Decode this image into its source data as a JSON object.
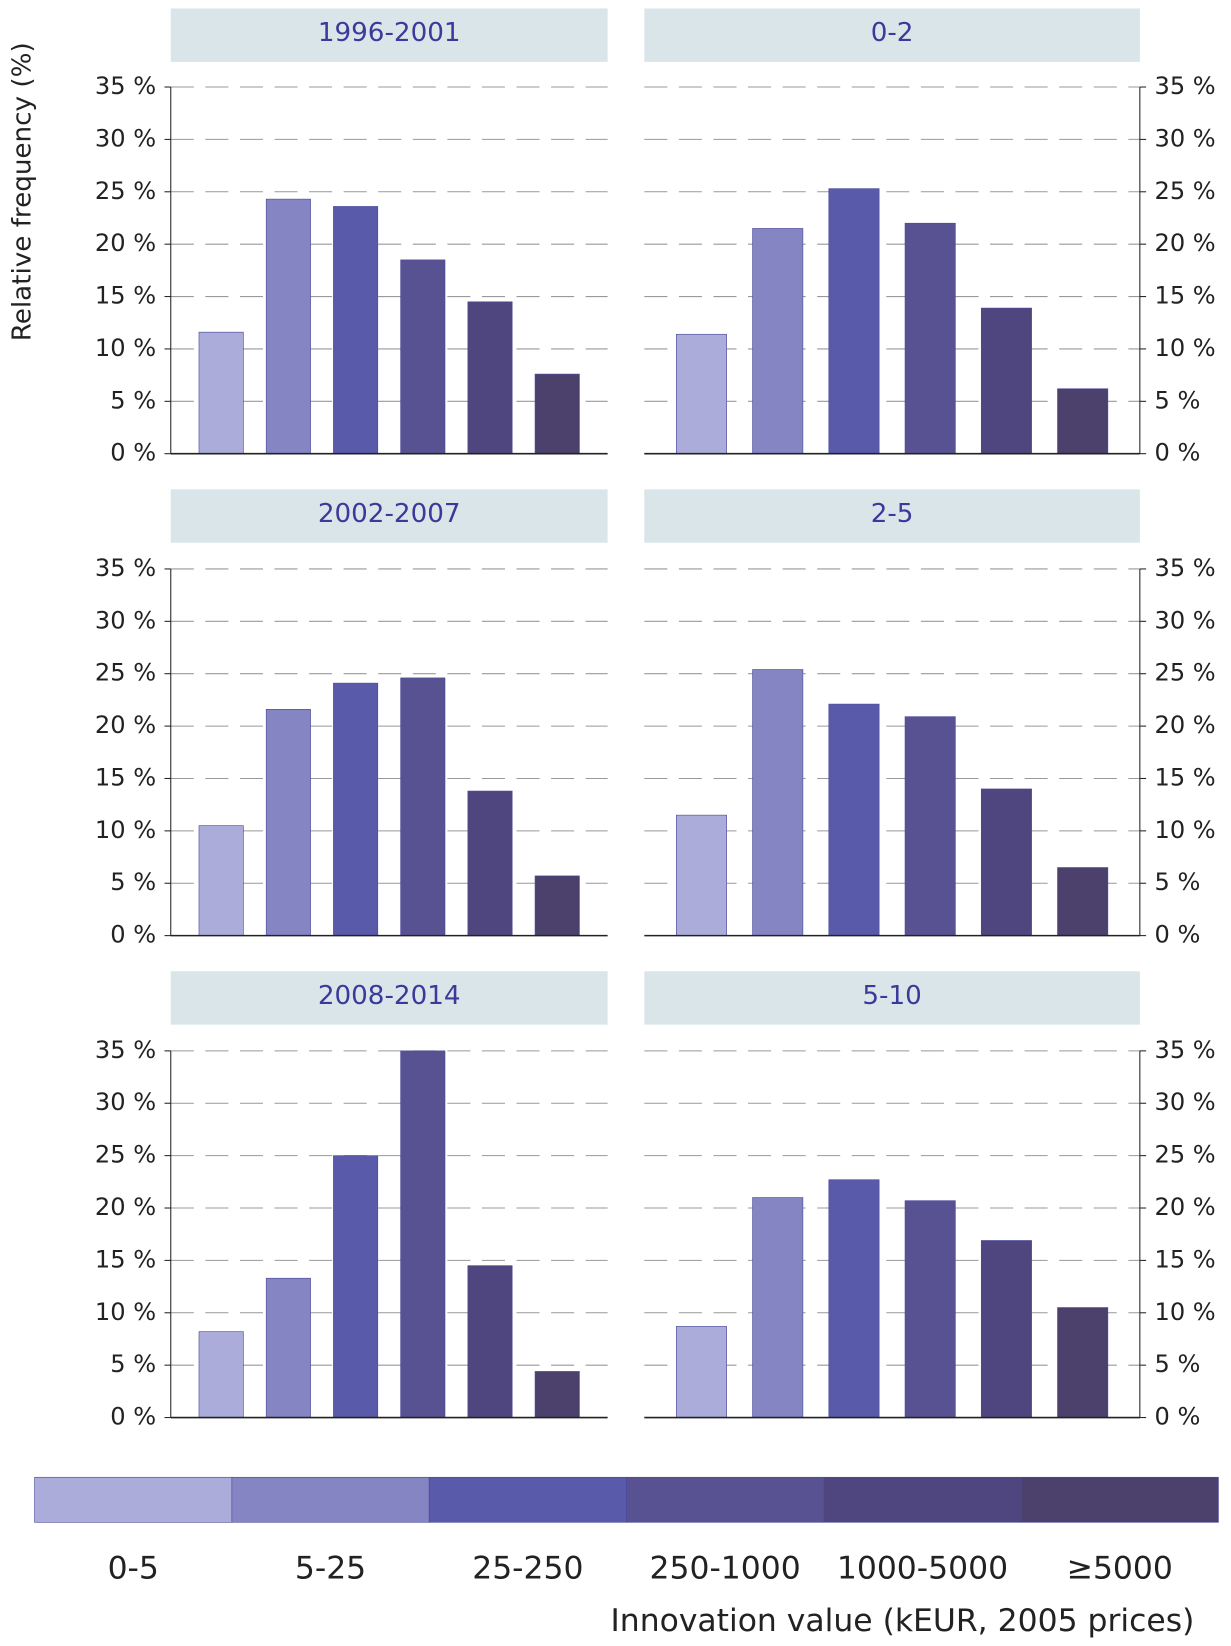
{
  "y_axis_label": "Relative frequency (%)",
  "legend": {
    "title": "Innovation value (kEUR, 2005 prices)",
    "categories": [
      "0-5",
      "5-25",
      "25-250",
      "250-1000",
      "1000-5000",
      "≥5000"
    ],
    "colors": [
      "#abacd9",
      "#8585c4",
      "#5a5aab",
      "#585293",
      "#50467f",
      "#4b416c"
    ]
  },
  "chart_data": [
    {
      "type": "bar",
      "title": "1996-2001",
      "axis_side": "left",
      "values": [
        11.6,
        24.3,
        23.6,
        18.5,
        14.5,
        7.6
      ],
      "ylim": [
        0,
        35
      ],
      "yticks": [
        {
          "value": 0,
          "label": "0 %"
        },
        {
          "value": 5,
          "label": "5 %"
        },
        {
          "value": 10,
          "label": "10 %"
        },
        {
          "value": 15,
          "label": "15 %"
        },
        {
          "value": 20,
          "label": "20 %"
        },
        {
          "value": 25,
          "label": "25 %"
        },
        {
          "value": 30,
          "label": "30 %"
        },
        {
          "value": 35,
          "label": "35 %"
        }
      ],
      "grid": true
    },
    {
      "type": "bar",
      "title": "0-2",
      "axis_side": "right",
      "values": [
        11.4,
        21.5,
        25.3,
        22.0,
        13.9,
        6.2
      ],
      "ylim": [
        0,
        35
      ],
      "yticks": [
        {
          "value": 0,
          "label": "0 %"
        },
        {
          "value": 5,
          "label": "5 %"
        },
        {
          "value": 10,
          "label": "10 %"
        },
        {
          "value": 15,
          "label": "15 %"
        },
        {
          "value": 20,
          "label": "20 %"
        },
        {
          "value": 25,
          "label": "25 %"
        },
        {
          "value": 30,
          "label": "30 %"
        },
        {
          "value": 35,
          "label": "35 %"
        }
      ],
      "grid": true
    },
    {
      "type": "bar",
      "title": "2002-2007",
      "axis_side": "left",
      "values": [
        10.5,
        21.6,
        24.1,
        24.6,
        13.8,
        5.7
      ],
      "ylim": [
        0,
        35
      ],
      "yticks": [
        {
          "value": 0,
          "label": "0 %"
        },
        {
          "value": 5,
          "label": "5 %"
        },
        {
          "value": 10,
          "label": "10 %"
        },
        {
          "value": 15,
          "label": "15 %"
        },
        {
          "value": 20,
          "label": "20 %"
        },
        {
          "value": 25,
          "label": "25 %"
        },
        {
          "value": 30,
          "label": "30 %"
        },
        {
          "value": 35,
          "label": "35 %"
        }
      ],
      "grid": true
    },
    {
      "type": "bar",
      "title": "2-5",
      "axis_side": "right",
      "values": [
        11.5,
        25.4,
        22.1,
        20.9,
        14.0,
        6.5
      ],
      "ylim": [
        0,
        35
      ],
      "yticks": [
        {
          "value": 0,
          "label": "0 %"
        },
        {
          "value": 5,
          "label": "5 %"
        },
        {
          "value": 10,
          "label": "10 %"
        },
        {
          "value": 15,
          "label": "15 %"
        },
        {
          "value": 20,
          "label": "20 %"
        },
        {
          "value": 25,
          "label": "25 %"
        },
        {
          "value": 30,
          "label": "30 %"
        },
        {
          "value": 35,
          "label": "35 %"
        }
      ],
      "grid": true
    },
    {
      "type": "bar",
      "title": "2008-2014",
      "axis_side": "left",
      "values": [
        8.2,
        13.3,
        25.0,
        35.0,
        14.5,
        4.4
      ],
      "ylim": [
        0,
        35
      ],
      "yticks": [
        {
          "value": 0,
          "label": "0 %"
        },
        {
          "value": 5,
          "label": "5 %"
        },
        {
          "value": 10,
          "label": "10 %"
        },
        {
          "value": 15,
          "label": "15 %"
        },
        {
          "value": 20,
          "label": "20 %"
        },
        {
          "value": 25,
          "label": "25 %"
        },
        {
          "value": 30,
          "label": "30 %"
        },
        {
          "value": 35,
          "label": "35 %"
        }
      ],
      "grid": true
    },
    {
      "type": "bar",
      "title": "5-10",
      "axis_side": "right",
      "values": [
        8.7,
        21.0,
        22.7,
        20.7,
        16.9,
        10.5
      ],
      "ylim": [
        0,
        35
      ],
      "yticks": [
        {
          "value": 0,
          "label": "0 %"
        },
        {
          "value": 5,
          "label": "5 %"
        },
        {
          "value": 10,
          "label": "10 %"
        },
        {
          "value": 15,
          "label": "15 %"
        },
        {
          "value": 20,
          "label": "20 %"
        },
        {
          "value": 25,
          "label": "25 %"
        },
        {
          "value": 30,
          "label": "30 %"
        },
        {
          "value": 35,
          "label": "35 %"
        }
      ],
      "grid": true
    }
  ]
}
